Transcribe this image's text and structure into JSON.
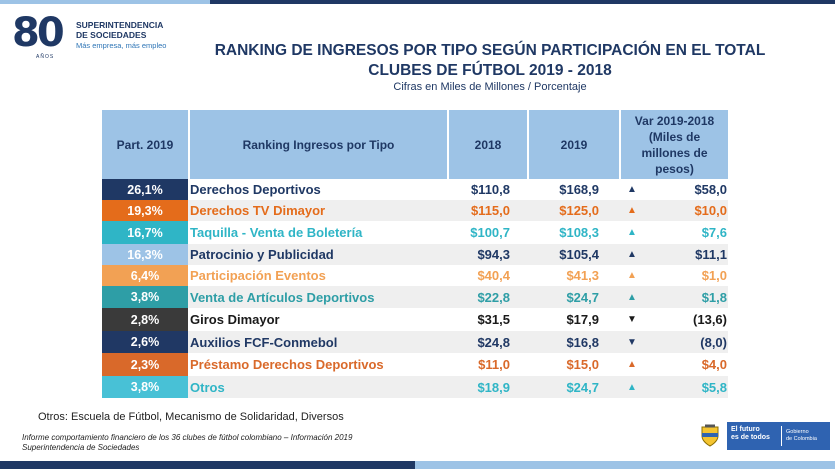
{
  "logo": {
    "number": "80",
    "anos": "AÑOS",
    "org_line1": "SUPERINTENDENCIA",
    "org_line2": "DE SOCIEDADES",
    "tagline": "Más empresa, más empleo"
  },
  "title_line1": "RANKING DE INGRESOS POR TIPO SEGÚN PARTICIPACIÓN EN EL TOTAL",
  "title_line2": "CLUBES DE FÚTBOL 2019 - 2018",
  "subtitle": "Cifras en Miles de Millones / Porcentaje",
  "table": {
    "headers": {
      "part": "Part. 2019",
      "category": "Ranking Ingresos por Tipo",
      "y2018": "2018",
      "y2019": "2019",
      "var_line1": "Var 2019-2018",
      "var_line2": "(Miles de",
      "var_line3": "millones de",
      "var_line4": "pesos)"
    },
    "rows": [
      {
        "part": "26,1%",
        "category": "Derechos Deportivos",
        "v2018": "$110,8",
        "v2019": "$168,9",
        "var": "$58,0",
        "direction": "up",
        "part_bg": "#1f3864",
        "text_color": "#1f3864",
        "arrow_color": "#1f3864"
      },
      {
        "part": "19,3%",
        "category": "Derechos TV Dimayor",
        "v2018": "$115,0",
        "v2019": "$125,0",
        "var": "$10,0",
        "direction": "up",
        "part_bg": "#e46c1b",
        "text_color": "#e46c1b",
        "arrow_color": "#e46c1b"
      },
      {
        "part": "16,7%",
        "category": "Taquilla - Venta de Boletería",
        "v2018": "$100,7",
        "v2019": "$108,3",
        "var": "$7,6",
        "direction": "up",
        "part_bg": "#2fb5c6",
        "text_color": "#2fb5c6",
        "arrow_color": "#2fb5c6"
      },
      {
        "part": "16,3%",
        "category": "Patrocinio y Publicidad",
        "v2018": "$94,3",
        "v2019": "$105,4",
        "var": "$11,1",
        "direction": "up",
        "part_bg": "#9dc3e6",
        "text_color": "#1f3864",
        "arrow_color": "#1f3864"
      },
      {
        "part": "6,4%",
        "category": "Participación Eventos",
        "v2018": "$40,4",
        "v2019": "$41,3",
        "var": "$1,0",
        "direction": "up",
        "part_bg": "#f2a154",
        "text_color": "#f2a154",
        "arrow_color": "#f2a154"
      },
      {
        "part": "3,8%",
        "category": "Venta de Artículos Deportivos",
        "v2018": "$22,8",
        "v2019": "$24,7",
        "var": "$1,8",
        "direction": "up",
        "part_bg": "#2e9ea6",
        "text_color": "#2e9ea6",
        "arrow_color": "#2e9ea6"
      },
      {
        "part": "2,8%",
        "category": "Giros Dimayor",
        "v2018": "$31,5",
        "v2019": "$17,9",
        "var": "(13,6)",
        "direction": "down",
        "part_bg": "#3a3a3a",
        "text_color": "#1a1a1a",
        "arrow_color": "#1a1a1a"
      },
      {
        "part": "2,6%",
        "category": "Auxilios FCF-Conmebol",
        "v2018": "$24,8",
        "v2019": "$16,8",
        "var": "(8,0)",
        "direction": "down",
        "part_bg": "#203864",
        "text_color": "#203864",
        "arrow_color": "#203864"
      },
      {
        "part": "2,3%",
        "category": "Préstamo Derechos Deportivos",
        "v2018": "$11,0",
        "v2019": "$15,0",
        "var": "$4,0",
        "direction": "up",
        "part_bg": "#d9692a",
        "text_color": "#d9692a",
        "arrow_color": "#d9692a"
      },
      {
        "part": "3,8%",
        "category": "Otros",
        "v2018": "$18,9",
        "v2019": "$24,7",
        "var": "$5,8",
        "direction": "up",
        "part_bg": "#48c1d6",
        "text_color": "#2fb5c6",
        "arrow_color": "#2fb5c6"
      }
    ]
  },
  "footnote": "Otros: Escuela de Fútbol, Mecanismo de Solidaridad, Diversos",
  "source_line1": "Informe comportamiento financiero de los 36 clubes de fútbol colombiano –  Información 2019",
  "source_line2": "Superintendencia de Sociedades",
  "gov": {
    "line1": "El futuro",
    "line2": "es de todos",
    "line3": "Gobierno",
    "line4": "de Colombia"
  }
}
